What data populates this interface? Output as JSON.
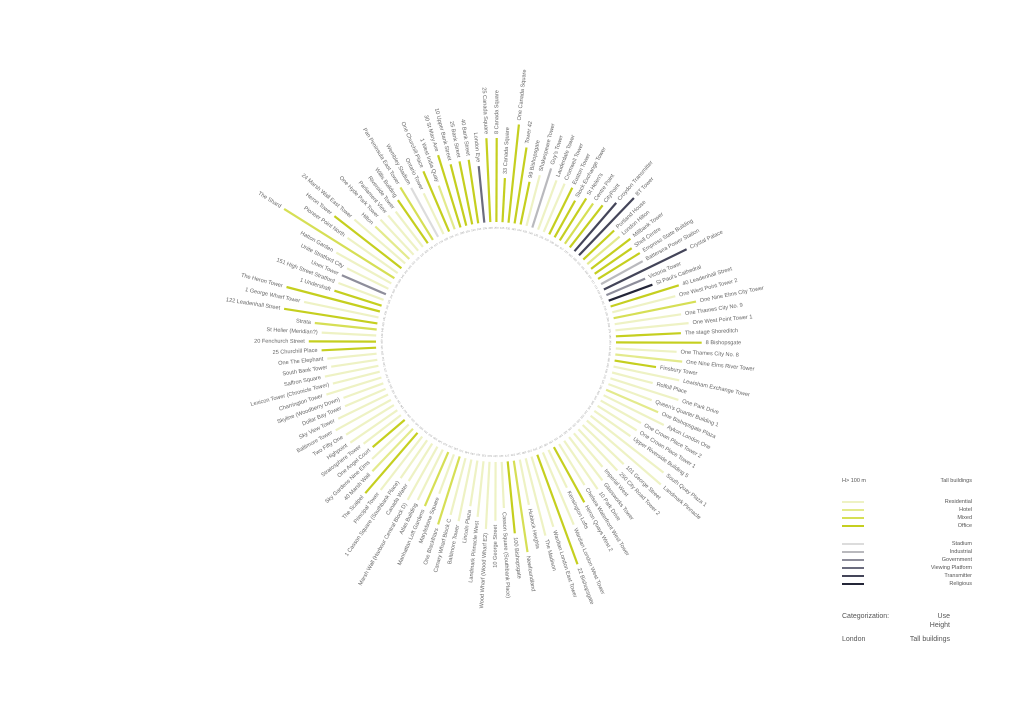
{
  "chart_data": {
    "type": "radial-bar",
    "city": "London",
    "categorization_label": "Categorization:",
    "categorization_values": [
      "Use",
      "Height"
    ],
    "subject": "Tall buildings",
    "legend": {
      "height_label": "H> 100 m",
      "title": "Tall buildings",
      "entries": [
        {
          "key": "residential",
          "label": "Residential",
          "color": "#eef2c4"
        },
        {
          "key": "hotel",
          "label": "Hotel",
          "color": "#e3ea8c"
        },
        {
          "key": "mixed",
          "label": "Mixed",
          "color": "#d6df55"
        },
        {
          "key": "office",
          "label": "Office",
          "color": "#c5cf1f"
        },
        {
          "key": "stadium",
          "label": "Stadium",
          "color": "#dcdcdc"
        },
        {
          "key": "industrial",
          "label": "Industrial",
          "color": "#b9b9bd"
        },
        {
          "key": "government",
          "label": "Government",
          "color": "#8e8e9b"
        },
        {
          "key": "viewing",
          "label": "Viewing Platform",
          "color": "#6b6c7e"
        },
        {
          "key": "transmitter",
          "label": "Transmitter",
          "color": "#444559"
        },
        {
          "key": "religious",
          "label": "Religious",
          "color": "#242638"
        }
      ]
    },
    "buildings": [
      {
        "name": "One Canada Square",
        "height": 235,
        "use": "office"
      },
      {
        "name": "Tower 42",
        "height": 183,
        "use": "office"
      },
      {
        "name": "99 Bishopsgate",
        "height": 104,
        "use": "office"
      },
      {
        "name": "Shakespeare Tower",
        "height": 125,
        "use": "residential"
      },
      {
        "name": "Guy's Tower",
        "height": 148,
        "use": "industrial"
      },
      {
        "name": "Lauderdale Tower",
        "height": 125,
        "use": "residential"
      },
      {
        "name": "Cromwell Tower",
        "height": 125,
        "use": "residential"
      },
      {
        "name": "Euston Tower",
        "height": 124,
        "use": "office"
      },
      {
        "name": "Stock Exchange Tower",
        "height": 100,
        "use": "office"
      },
      {
        "name": "St Helen's",
        "height": 118,
        "use": "office"
      },
      {
        "name": "Centre Point",
        "height": 117,
        "use": "mixed"
      },
      {
        "name": "CityPoint",
        "height": 127,
        "use": "office"
      },
      {
        "name": "Croydon Transmitter",
        "height": 152,
        "use": "transmitter"
      },
      {
        "name": "BT Tower",
        "height": 189,
        "use": "transmitter"
      },
      {
        "name": "Portland House",
        "height": 101,
        "use": "office"
      },
      {
        "name": "London Hilton",
        "height": 101,
        "use": "hotel"
      },
      {
        "name": "Millbank Tower",
        "height": 118,
        "use": "office"
      },
      {
        "name": "Shell Centre",
        "height": 107,
        "use": "office"
      },
      {
        "name": "Empress State Building",
        "height": 117,
        "use": "office"
      },
      {
        "name": "Battersea Power Station",
        "height": 113,
        "use": "industrial"
      },
      {
        "name": "Crystal Palace",
        "height": 219,
        "use": "transmitter"
      },
      {
        "name": "Victoria Tower",
        "height": 100,
        "use": "government"
      },
      {
        "name": "St Paul's Cathedral",
        "height": 111,
        "use": "religious"
      },
      {
        "name": "40 Leadenhall Street",
        "height": 170,
        "use": "office"
      },
      {
        "name": "One West Point Tower 2",
        "height": 155,
        "use": "residential"
      },
      {
        "name": "One Nine Elms City Tower",
        "height": 200,
        "use": "mixed"
      },
      {
        "name": "One Thames City No. 9",
        "height": 160,
        "use": "residential"
      },
      {
        "name": "One West Point Tower 1",
        "height": 175,
        "use": "residential"
      },
      {
        "name": "The stage Shoreditch",
        "height": 155,
        "use": "office"
      },
      {
        "name": "8 Bishopsgate",
        "height": 204,
        "use": "office"
      },
      {
        "name": "One Thames City No. 8",
        "height": 145,
        "use": "residential"
      },
      {
        "name": "One Nine Elms River Tower",
        "height": 160,
        "use": "hotel"
      },
      {
        "name": "Finsbury Tower",
        "height": 100,
        "use": "office"
      },
      {
        "name": "Lewisham Exchange Tower",
        "height": 160,
        "use": "residential"
      },
      {
        "name": "Rolfoll Place",
        "height": 100,
        "use": "residential"
      },
      {
        "name": "One Park Drive",
        "height": 170,
        "use": "residential"
      },
      {
        "name": "Queen's Quarter Building 1",
        "height": 110,
        "use": "residential"
      },
      {
        "name": "One Bishopsgate Plaza",
        "height": 135,
        "use": "hotel"
      },
      {
        "name": "Aykon London One",
        "height": 160,
        "use": "residential"
      },
      {
        "name": "One Crown Place Tower 2",
        "height": 110,
        "use": "residential"
      },
      {
        "name": "One Crown Place Tower 1",
        "height": 110,
        "use": "residential"
      },
      {
        "name": "Upper Riverside Building 5",
        "height": 105,
        "use": "residential"
      },
      {
        "name": "South Quay Plaza 1",
        "height": 220,
        "use": "residential"
      },
      {
        "name": "Landmark Pinnacle",
        "height": 233,
        "use": "residential"
      },
      {
        "name": "101 George Street",
        "height": 135,
        "use": "residential"
      },
      {
        "name": "250 City Road Tower 2",
        "height": 135,
        "use": "residential"
      },
      {
        "name": "Imperial West",
        "height": 105,
        "use": "residential"
      },
      {
        "name": "Glassworks Tower",
        "height": 130,
        "use": "residential"
      },
      {
        "name": "10 Park Drive",
        "height": 140,
        "use": "residential"
      },
      {
        "name": "Chelsea Waterfront West Tower",
        "height": 115,
        "use": "residential"
      },
      {
        "name": "Heron Quays West 2",
        "height": 150,
        "use": "office"
      },
      {
        "name": "Kensington Lofts",
        "height": 100,
        "use": "residential"
      },
      {
        "name": "Wardian London West Tower",
        "height": 187,
        "use": "residential"
      },
      {
        "name": "22 Bishopsgate",
        "height": 278,
        "use": "office"
      },
      {
        "name": "Wardian London East Tower",
        "height": 175,
        "use": "residential"
      },
      {
        "name": "The Madison",
        "height": 190,
        "use": "residential"
      },
      {
        "name": "Hublock Heights",
        "height": 110,
        "use": "residential"
      },
      {
        "name": "Newfoundland",
        "height": 220,
        "use": "mixed"
      },
      {
        "name": "100 Bishopsgate",
        "height": 172,
        "use": "office"
      },
      {
        "name": "Casson Square (Southbank Place)",
        "height": 110,
        "use": "residential"
      },
      {
        "name": "10 George Street",
        "height": 140,
        "use": "residential"
      },
      {
        "name": "Wood Wharf (Wood Wharf E2)",
        "height": 160,
        "use": "residential"
      },
      {
        "name": "Landmark Pinnacle West",
        "height": 133,
        "use": "residential"
      },
      {
        "name": "Lincoln Plaza",
        "height": 110,
        "use": "residential"
      },
      {
        "name": "Baltimore Tower",
        "height": 150,
        "use": "residential"
      },
      {
        "name": "Canary Wharf Block C",
        "height": 140,
        "use": "residential"
      },
      {
        "name": "One Blackfriars",
        "height": 170,
        "use": "mixed"
      },
      {
        "name": "Marylebone Square",
        "height": 100,
        "use": "residential"
      },
      {
        "name": "Manhattan Loft Gardens",
        "height": 140,
        "use": "mixed"
      },
      {
        "name": "Atlas Building",
        "height": 134,
        "use": "residential"
      },
      {
        "name": "Marsh Wall (Harbour Central Block D)",
        "height": 145,
        "use": "residential"
      },
      {
        "name": "Canada Water",
        "height": 105,
        "use": "residential"
      },
      {
        "name": "1 Casson Square (Southbank Place)",
        "height": 110,
        "use": "residential"
      },
      {
        "name": "Principal Tower",
        "height": 161,
        "use": "residential"
      },
      {
        "name": "The Scalpel",
        "height": 190,
        "use": "office"
      },
      {
        "name": "40 Marsh Wall",
        "height": 140,
        "use": "hotel"
      },
      {
        "name": "Sky Gardens Nine Elms",
        "height": 120,
        "use": "residential"
      },
      {
        "name": "One Angel Court",
        "height": 100,
        "use": "office"
      },
      {
        "name": "Stratosphere Tower",
        "height": 112,
        "use": "residential"
      },
      {
        "name": "Highpoint",
        "height": 136,
        "use": "residential"
      },
      {
        "name": "Two Fifty One",
        "height": 134,
        "use": "residential"
      },
      {
        "name": "Baltimore Tower",
        "height": 150,
        "use": "residential"
      },
      {
        "name": "Sky View Tower",
        "height": 132,
        "use": "residential"
      },
      {
        "name": "Dollar Bay Tower",
        "height": 105,
        "use": "residential"
      },
      {
        "name": "Skyline (Woodberry Down)",
        "height": 101,
        "use": "residential"
      },
      {
        "name": "Charrington Tower",
        "height": 137,
        "use": "residential"
      },
      {
        "name": "Lexicon Tower (Chronicle Tower)",
        "height": 115,
        "use": "residential"
      },
      {
        "name": "Saffron Square",
        "height": 130,
        "use": "residential"
      },
      {
        "name": "South Bank Tower",
        "height": 111,
        "use": "residential"
      },
      {
        "name": "One The Elephant",
        "height": 118,
        "use": "residential"
      },
      {
        "name": "25 Churchill Place",
        "height": 130,
        "use": "office"
      },
      {
        "name": "20 Fenchurch Street",
        "height": 160,
        "use": "office"
      },
      {
        "name": "St Helier (Meridian?)",
        "height": 130,
        "use": "residential"
      },
      {
        "name": "Strata",
        "height": 148,
        "use": "mixed"
      },
      {
        "name": "122 Leadenhall Street",
        "height": 225,
        "use": "office"
      },
      {
        "name": "1 George Wharf Tower",
        "height": 181,
        "use": "residential"
      },
      {
        "name": "The Heron Tower",
        "height": 230,
        "use": "office"
      },
      {
        "name": "1 Undershaft",
        "height": 118,
        "use": "office"
      },
      {
        "name": "151 High Street Stratford",
        "height": 115,
        "use": "residential"
      },
      {
        "name": "Unex Tower",
        "height": 114,
        "use": "government"
      },
      {
        "name": "Unite Stratford City",
        "height": 110,
        "use": "residential"
      },
      {
        "name": "Hatton Garden",
        "height": 150,
        "use": "residential"
      },
      {
        "name": "The Shard",
        "height": 310,
        "use": "mixed"
      },
      {
        "name": "Pioneer Point North",
        "height": 146,
        "use": "residential"
      },
      {
        "name": "Heron Tower",
        "height": 202,
        "use": "office"
      },
      {
        "name": "24 Marsh Wall East Tower",
        "height": 160,
        "use": "residential"
      },
      {
        "name": "Hilton",
        "height": 112,
        "use": "hotel"
      },
      {
        "name": "One Hyde Park Tower",
        "height": 115,
        "use": "residential"
      },
      {
        "name": "Parliament View",
        "height": 110,
        "use": "residential"
      },
      {
        "name": "Riverside Tower",
        "height": 106,
        "use": "residential"
      },
      {
        "name": "Willis Building",
        "height": 125,
        "use": "office"
      },
      {
        "name": "Pan Peninsula East Tower",
        "height": 147,
        "use": "mixed"
      },
      {
        "name": "Wembley Stadium",
        "height": 133,
        "use": "stadium"
      },
      {
        "name": "Ontario Tower",
        "height": 108,
        "use": "residential"
      },
      {
        "name": "One Churchill Place",
        "height": 156,
        "use": "office"
      },
      {
        "name": "1 West India Quay",
        "height": 111,
        "use": "hotel"
      },
      {
        "name": "30 St Mary Axe",
        "height": 180,
        "use": "office"
      },
      {
        "name": "10 Upper Bank Street",
        "height": 151,
        "use": "office"
      },
      {
        "name": "25 Bank Street",
        "height": 153,
        "use": "office"
      },
      {
        "name": "40 Bank Street",
        "height": 153,
        "use": "office"
      },
      {
        "name": "London Eye",
        "height": 135,
        "use": "viewing"
      },
      {
        "name": "25 Canada Square",
        "height": 200,
        "use": "office"
      },
      {
        "name": "8 Canada Square",
        "height": 200,
        "use": "office"
      },
      {
        "name": "33 Canada Square",
        "height": 105,
        "use": "office"
      }
    ]
  }
}
